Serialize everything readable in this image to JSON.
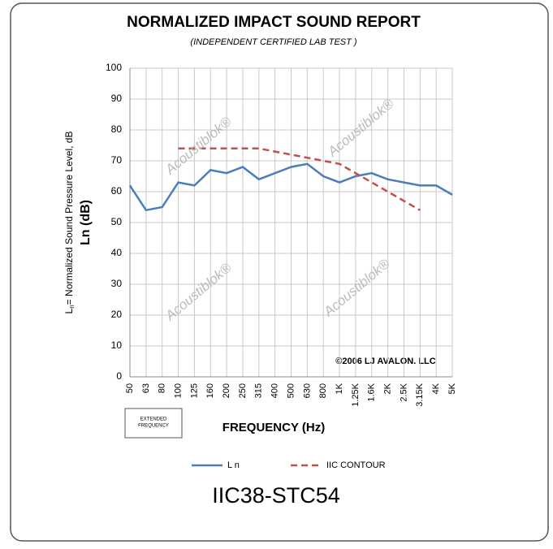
{
  "chart_data": {
    "type": "line",
    "title": "NORMALIZED IMPACT SOUND REPORT",
    "subtitle": "(INDEPENDENT CERTIFIED LAB TEST )",
    "y_label_parts": [
      "L",
      "n",
      "= Normalized  Sound Pressure Level, dB"
    ],
    "y_label_main": "Ln (dB)",
    "x_label": "FREQUENCY (Hz)",
    "extended_note": [
      "EXTENDED",
      "FREQUENCY"
    ],
    "watermark": "Acoustiblok®",
    "copyright": "©2006 LJ AVALON. LLC",
    "footer": "IIC38-STC54",
    "categories": [
      "50",
      "63",
      "80",
      "100",
      "125",
      "160",
      "200",
      "250",
      "315",
      "400",
      "500",
      "630",
      "800",
      "1K",
      "1.25K",
      "1.6K",
      "2K",
      "2.5K",
      "3.15K",
      "4K",
      "5K"
    ],
    "series": [
      {
        "name": "L n",
        "color": "#4a7ebb",
        "dashed": false,
        "values": [
          62,
          54,
          55,
          63,
          62,
          67,
          66,
          68,
          64,
          66,
          68,
          69,
          65,
          63,
          65,
          66,
          64,
          63,
          62,
          62,
          59
        ]
      },
      {
        "name": "IIC CONTOUR",
        "color": "#c0504d",
        "dashed": true,
        "values": [
          null,
          null,
          null,
          74,
          74,
          74,
          74,
          74,
          74,
          73,
          72,
          71,
          70,
          69,
          66,
          63,
          60,
          57,
          54,
          null,
          null
        ]
      }
    ],
    "ylim": [
      0,
      100
    ],
    "yticks": [
      0,
      10,
      20,
      30,
      40,
      50,
      60,
      70,
      80,
      90,
      100
    ],
    "grid": true
  }
}
